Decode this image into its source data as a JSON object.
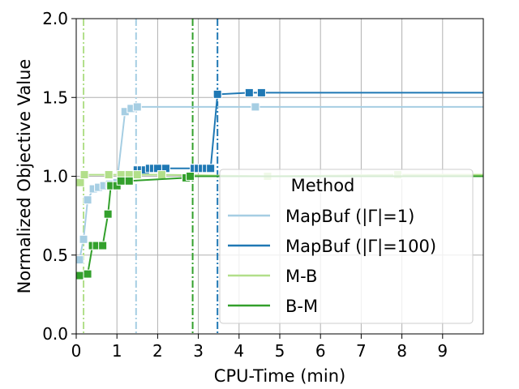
{
  "chart_data": {
    "type": "line",
    "xlabel": "CPU-Time (min)",
    "ylabel": "Normalized Objective Value",
    "xlim": [
      0,
      10
    ],
    "ylim": [
      0,
      2.0
    ],
    "xticks": [
      0,
      1,
      2,
      3,
      4,
      5,
      6,
      7,
      8,
      9
    ],
    "yticks": [
      0.0,
      0.5,
      1.0,
      1.5,
      2.0
    ],
    "xtick_labels": [
      "0",
      "1",
      "2",
      "3",
      "4",
      "5",
      "6",
      "7",
      "8",
      "9"
    ],
    "ytick_labels": [
      "0.0",
      "0.5",
      "1.0",
      "1.5",
      "2.0"
    ],
    "grid": true,
    "legend": {
      "title": "Method",
      "placement": "lower-right"
    },
    "series": [
      {
        "name": "MapBuf (|Γ|=1)",
        "color": "#a6cee3",
        "vline": 1.47,
        "x": [
          0.08,
          0.18,
          0.28,
          0.42,
          0.55,
          0.68,
          0.82,
          1.0,
          1.2,
          1.35,
          1.5,
          1.8,
          2.2,
          3.0,
          4.4,
          10.0
        ],
        "y": [
          0.47,
          0.6,
          0.85,
          0.92,
          0.93,
          0.94,
          0.95,
          0.96,
          1.41,
          1.43,
          1.44,
          1.44,
          1.44,
          1.44,
          1.44,
          1.44
        ],
        "marker_x": [
          0.08,
          0.18,
          0.28,
          0.42,
          0.55,
          0.68,
          0.82,
          1.0,
          1.2,
          1.35,
          1.5,
          4.4
        ],
        "marker_y": [
          0.47,
          0.6,
          0.85,
          0.92,
          0.93,
          0.94,
          0.95,
          0.96,
          1.41,
          1.43,
          1.44,
          1.44
        ]
      },
      {
        "name": "MapBuf (|Γ|=100)",
        "color": "#1f78b4",
        "vline": 3.47,
        "x": [
          1.5,
          1.6,
          1.7,
          1.8,
          1.9,
          2.0,
          2.2,
          2.9,
          3.0,
          3.1,
          3.2,
          3.3,
          3.47,
          4.25,
          4.55,
          10.0
        ],
        "y": [
          1.04,
          1.04,
          1.04,
          1.05,
          1.05,
          1.05,
          1.05,
          1.05,
          1.05,
          1.05,
          1.05,
          1.05,
          1.52,
          1.53,
          1.53,
          1.53
        ],
        "marker_x": [
          1.5,
          1.6,
          1.7,
          1.8,
          1.9,
          2.0,
          2.2,
          2.9,
          3.0,
          3.1,
          3.2,
          3.3,
          3.47,
          4.25,
          4.55
        ],
        "marker_y": [
          1.04,
          1.04,
          1.04,
          1.05,
          1.05,
          1.05,
          1.05,
          1.05,
          1.05,
          1.05,
          1.05,
          1.05,
          1.52,
          1.53,
          1.53
        ]
      },
      {
        "name": "M-B",
        "color": "#b2df8a",
        "vline": 0.18,
        "x": [
          0.1,
          0.2,
          0.8,
          1.1,
          1.3,
          1.5,
          2.1,
          4.7,
          7.9,
          10.0
        ],
        "y": [
          0.96,
          1.01,
          1.01,
          1.01,
          1.01,
          1.01,
          1.01,
          1.0,
          1.01,
          1.01
        ],
        "marker_x": [
          0.1,
          0.2,
          0.8,
          1.1,
          1.3,
          1.5,
          2.1,
          4.7,
          7.9
        ],
        "marker_y": [
          0.96,
          1.01,
          1.01,
          1.01,
          1.01,
          1.01,
          1.01,
          1.0,
          1.01
        ]
      },
      {
        "name": "B-M",
        "color": "#33a02c",
        "vline": 2.86,
        "x": [
          0.08,
          0.28,
          0.4,
          0.5,
          0.65,
          0.78,
          0.85,
          1.0,
          1.1,
          1.3,
          2.7,
          2.8,
          2.85,
          10.0
        ],
        "y": [
          0.37,
          0.38,
          0.56,
          0.56,
          0.56,
          0.76,
          0.94,
          0.94,
          0.97,
          0.97,
          0.99,
          1.0,
          1.0,
          1.0
        ],
        "marker_x": [
          0.08,
          0.28,
          0.4,
          0.5,
          0.65,
          0.78,
          0.85,
          1.0,
          1.1,
          1.3,
          2.7,
          2.8
        ],
        "marker_y": [
          0.37,
          0.38,
          0.56,
          0.56,
          0.56,
          0.76,
          0.94,
          0.94,
          0.97,
          0.97,
          0.99,
          1.0
        ]
      }
    ]
  }
}
